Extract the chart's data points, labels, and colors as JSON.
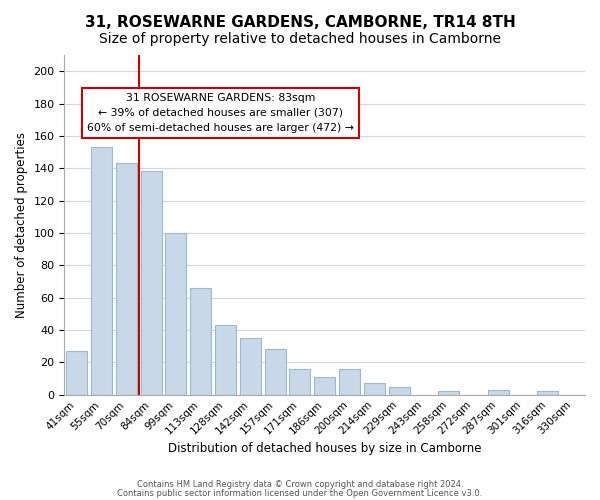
{
  "title": "31, ROSEWARNE GARDENS, CAMBORNE, TR14 8TH",
  "subtitle": "Size of property relative to detached houses in Camborne",
  "xlabel": "Distribution of detached houses by size in Camborne",
  "ylabel": "Number of detached properties",
  "bar_labels": [
    "41sqm",
    "55sqm",
    "70sqm",
    "84sqm",
    "99sqm",
    "113sqm",
    "128sqm",
    "142sqm",
    "157sqm",
    "171sqm",
    "186sqm",
    "200sqm",
    "214sqm",
    "229sqm",
    "243sqm",
    "258sqm",
    "272sqm",
    "287sqm",
    "301sqm",
    "316sqm",
    "330sqm"
  ],
  "bar_values": [
    27,
    153,
    143,
    138,
    100,
    66,
    43,
    35,
    28,
    16,
    11,
    16,
    7,
    5,
    0,
    2,
    0,
    3,
    0,
    2,
    0
  ],
  "bar_color": "#c8d8e8",
  "bar_edge_color": "#a0b8cc",
  "vline_pos": 2.5,
  "vline_color": "#cc0000",
  "ylim": [
    0,
    210
  ],
  "yticks": [
    0,
    20,
    40,
    60,
    80,
    100,
    120,
    140,
    160,
    180,
    200
  ],
  "annotation_box_text": "31 ROSEWARNE GARDENS: 83sqm\n← 39% of detached houses are smaller (307)\n60% of semi-detached houses are larger (472) →",
  "footer_line1": "Contains HM Land Registry data © Crown copyright and database right 2024.",
  "footer_line2": "Contains public sector information licensed under the Open Government Licence v3.0.",
  "title_fontsize": 11,
  "subtitle_fontsize": 10,
  "background_color": "#ffffff",
  "grid_color": "#d0d8e8"
}
